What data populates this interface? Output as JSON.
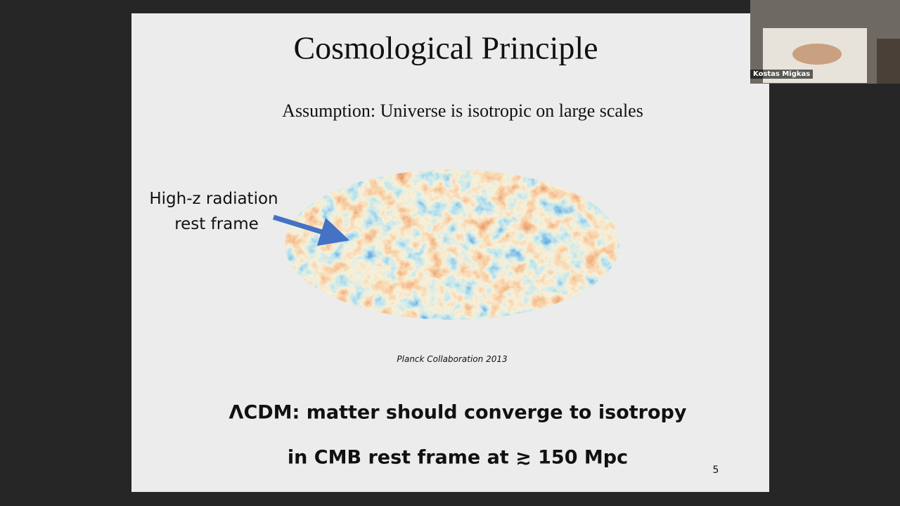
{
  "slide": {
    "title": "Cosmological Principle",
    "subtitle": "Assumption: Universe is isotropic on large scales",
    "annotation": [
      "High-z radiation",
      "rest frame"
    ],
    "caption": "Planck Collaboration 2013",
    "conclusion": [
      "ΛCDM: matter should converge to isotropy",
      "in CMB rest frame at ≳ 150 Mpc"
    ],
    "page_number": "5"
  },
  "participant": {
    "name": "Kostas Migkas"
  }
}
